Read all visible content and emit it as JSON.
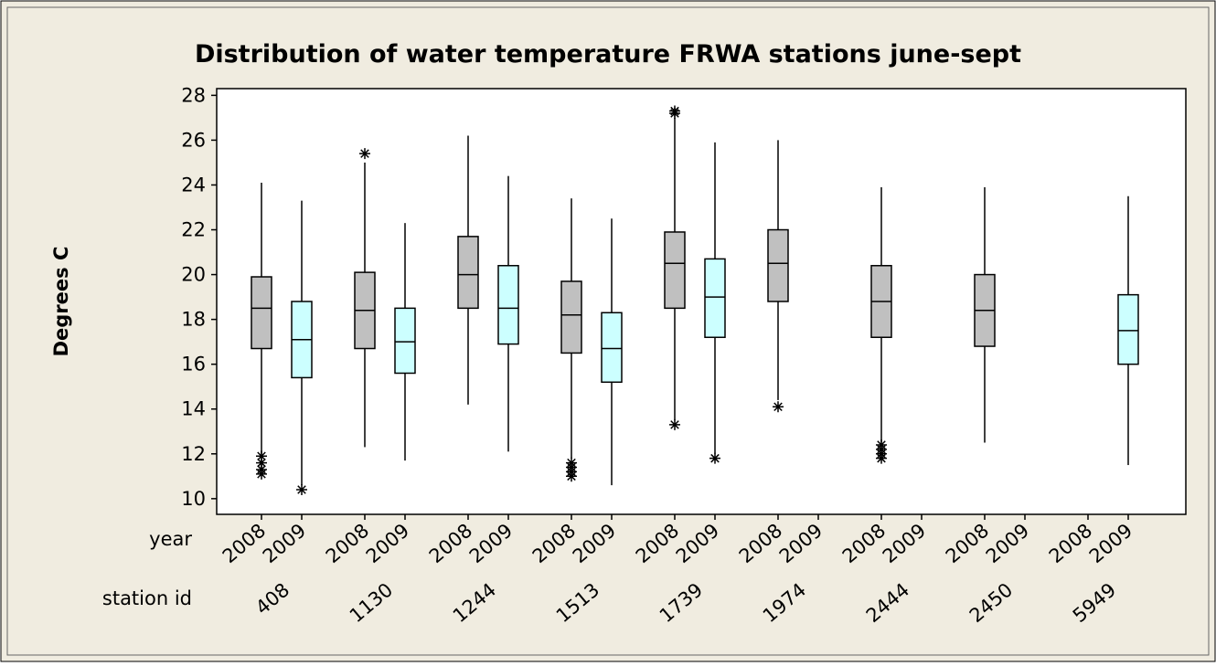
{
  "chart_data": {
    "type": "box",
    "title": "Distribution of water temperature FRWA stations june-sept",
    "ylabel": "Degrees C",
    "year_row_label": "year",
    "station_row_label": "station id",
    "categories": [
      "408",
      "1130",
      "1244",
      "1513",
      "1739",
      "1974",
      "2444",
      "2450",
      "5949"
    ],
    "ylim": [
      9.3,
      28.3
    ],
    "yticks": [
      10,
      12,
      14,
      16,
      18,
      20,
      22,
      24,
      26,
      28
    ],
    "series": [
      {
        "name": "2008",
        "color": "#c0c0c0",
        "boxes": [
          {
            "min": 12.0,
            "q1": 16.7,
            "median": 18.5,
            "q3": 19.9,
            "max": 24.1,
            "outliers": [
              11.9,
              11.6,
              11.3,
              11.1
            ]
          },
          {
            "min": 12.3,
            "q1": 16.7,
            "median": 18.4,
            "q3": 20.1,
            "max": 25.0,
            "outliers": [
              25.4
            ]
          },
          {
            "min": 14.2,
            "q1": 18.5,
            "median": 20.0,
            "q3": 21.7,
            "max": 26.2,
            "outliers": []
          },
          {
            "min": 11.8,
            "q1": 16.5,
            "median": 18.2,
            "q3": 19.7,
            "max": 23.4,
            "outliers": [
              11.6,
              11.4,
              11.2,
              11.0
            ]
          },
          {
            "min": 13.5,
            "q1": 18.5,
            "median": 20.5,
            "q3": 21.9,
            "max": 27.0,
            "outliers": [
              13.3,
              27.2,
              27.3
            ]
          },
          {
            "min": 14.4,
            "q1": 18.8,
            "median": 20.5,
            "q3": 22.0,
            "max": 26.0,
            "outliers": [
              14.1
            ]
          },
          {
            "min": 12.5,
            "q1": 17.2,
            "median": 18.8,
            "q3": 20.4,
            "max": 23.9,
            "outliers": [
              12.4,
              12.2,
              12.0,
              11.8
            ]
          },
          {
            "min": 12.5,
            "q1": 16.8,
            "median": 18.4,
            "q3": 20.0,
            "max": 23.9,
            "outliers": []
          },
          null
        ]
      },
      {
        "name": "2009",
        "color": "#ccffff",
        "boxes": [
          {
            "min": 10.6,
            "q1": 15.4,
            "median": 17.1,
            "q3": 18.8,
            "max": 23.3,
            "outliers": [
              10.4
            ]
          },
          {
            "min": 11.7,
            "q1": 15.6,
            "median": 17.0,
            "q3": 18.5,
            "max": 22.3,
            "outliers": []
          },
          {
            "min": 12.1,
            "q1": 16.9,
            "median": 18.5,
            "q3": 20.4,
            "max": 24.4,
            "outliers": []
          },
          {
            "min": 10.6,
            "q1": 15.2,
            "median": 16.7,
            "q3": 18.3,
            "max": 22.5,
            "outliers": []
          },
          {
            "min": 12.0,
            "q1": 17.2,
            "median": 19.0,
            "q3": 20.7,
            "max": 25.9,
            "outliers": [
              11.8
            ]
          },
          null,
          null,
          null,
          {
            "min": 11.5,
            "q1": 16.0,
            "median": 17.5,
            "q3": 19.1,
            "max": 23.5,
            "outliers": []
          }
        ]
      }
    ]
  }
}
